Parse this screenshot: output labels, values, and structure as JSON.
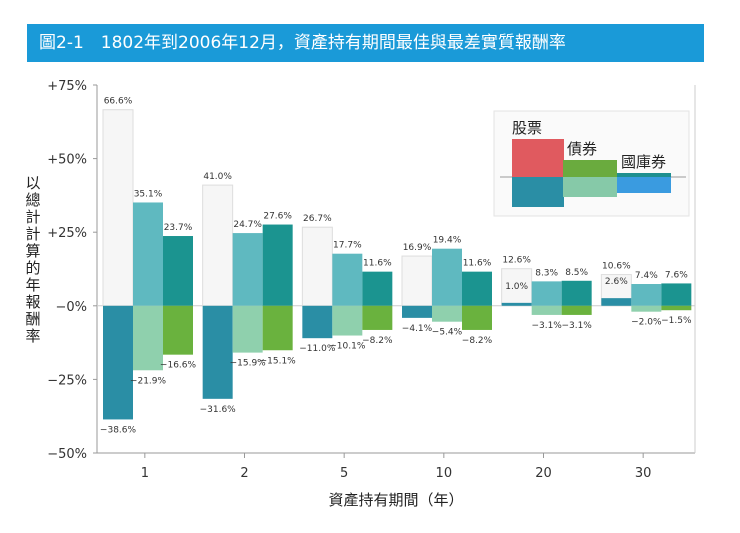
{
  "chart_data": {
    "type": "bar",
    "title": "圖2-1　1802年到2006年12月，資產持有期間最佳與最差實質報酬率",
    "xlabel": "資產持有期間（年）",
    "ylabel": "以總計計算的年報酬率",
    "categories": [
      "1",
      "2",
      "5",
      "10",
      "20",
      "30"
    ],
    "ylim": [
      -50,
      75
    ],
    "yticks": [
      75,
      50,
      25,
      0,
      -25,
      -50
    ],
    "ytick_labels": [
      "+75%",
      "+50%",
      "+25%",
      "−0%",
      "−25%",
      "−50%"
    ],
    "grid": false,
    "legend": {
      "position": "top-right",
      "entries": [
        "股票",
        "債券",
        "國庫券"
      ],
      "colors_max": [
        "#e05a5f",
        "#6aab3e",
        "#1e8f8f"
      ],
      "colors_min": [
        "#2a8ea5",
        "#86c9a8",
        "#3a9be0"
      ]
    },
    "series": [
      {
        "name": "股票",
        "max": [
          66.6,
          41.0,
          26.7,
          16.9,
          12.6,
          10.6
        ],
        "min": [
          -38.6,
          -31.6,
          -11.0,
          -4.1,
          1.0,
          2.6
        ],
        "max_color": "#f6f6f6",
        "min_color": "#2a8ea5"
      },
      {
        "name": "債券",
        "max": [
          35.1,
          24.7,
          17.7,
          19.4,
          8.3,
          7.4
        ],
        "min": [
          -21.9,
          -15.9,
          -10.1,
          -5.4,
          -3.1,
          -2.0
        ],
        "max_color": "#5fb9c0",
        "min_color": "#8fd0ad"
      },
      {
        "name": "國庫券",
        "max": [
          23.7,
          27.6,
          11.6,
          11.6,
          8.5,
          7.6
        ],
        "min": [
          -16.6,
          -15.1,
          -8.2,
          -8.2,
          -3.1,
          -1.5
        ],
        "max_color": "#1b9490",
        "min_color": "#6ab23e"
      }
    ]
  }
}
